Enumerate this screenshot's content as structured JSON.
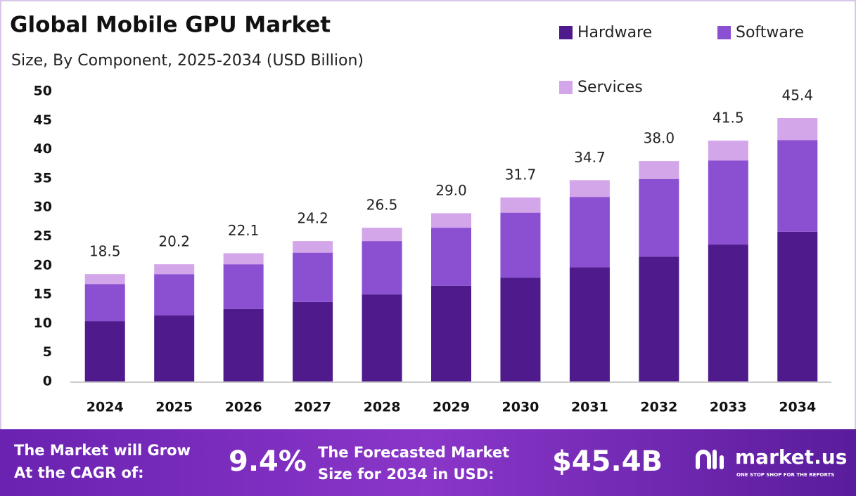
{
  "chart_data": {
    "type": "stacked_bar",
    "title": "Global Mobile GPU Market",
    "subtitle": "Size, By Component, 2025-2034 (USD Billion)",
    "categories": [
      "2024",
      "2025",
      "2026",
      "2027",
      "2028",
      "2029",
      "2030",
      "2031",
      "2032",
      "2033",
      "2034"
    ],
    "series": [
      {
        "name": "Hardware",
        "color": "#4e1a8c",
        "values": [
          10.4,
          11.4,
          12.5,
          13.7,
          15.0,
          16.5,
          17.9,
          19.7,
          21.5,
          23.6,
          25.8
        ]
      },
      {
        "name": "Software",
        "color": "#8b4fd1",
        "values": [
          6.4,
          7.1,
          7.7,
          8.5,
          9.2,
          10.0,
          11.2,
          12.1,
          13.4,
          14.5,
          15.8
        ]
      },
      {
        "name": "Services",
        "color": "#d3a6ea",
        "values": [
          1.7,
          1.7,
          1.9,
          2.0,
          2.3,
          2.5,
          2.6,
          2.9,
          3.1,
          3.4,
          3.8
        ]
      }
    ],
    "totals": [
      18.5,
      20.2,
      22.1,
      24.2,
      26.5,
      29.0,
      31.7,
      34.7,
      38.0,
      41.5,
      45.4
    ],
    "total_labels": [
      "18.5",
      "20.2",
      "22.1",
      "24.2",
      "26.5",
      "29.0",
      "31.7",
      "34.7",
      "38.0",
      "41.5",
      "45.4"
    ],
    "ylim": [
      0,
      50
    ],
    "yticks": [
      0,
      5,
      10,
      15,
      20,
      25,
      30,
      35,
      40,
      45,
      50
    ],
    "grid": false
  },
  "footer": {
    "cagr_label": [
      "The Market will Grow",
      "At the CAGR of:"
    ],
    "cagr": "9.4%",
    "forecast_label": [
      "The Forecasted Market",
      "Size for 2034 in USD:"
    ],
    "forecast": "$45.4B",
    "logo": "market.us",
    "tagline": "ONE STOP SHOP FOR THE REPORTS"
  }
}
